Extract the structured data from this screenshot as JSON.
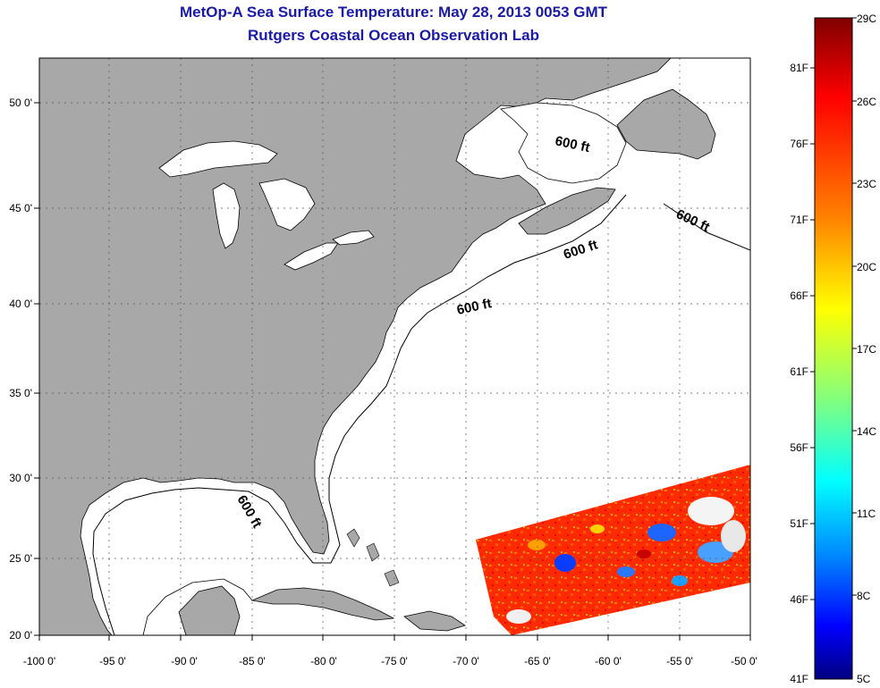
{
  "title": {
    "line1": "MetOp-A Sea Surface Temperature:  May 28, 2013 0053 GMT",
    "line2": "Rutgers Coastal Ocean Observation Lab"
  },
  "map": {
    "extent": {
      "lon": [
        -100,
        -50
      ],
      "lat": [
        20,
        52.5
      ]
    },
    "lon_ticks": [
      "-100 0'",
      "-95 0'",
      "-90 0'",
      "-85 0'",
      "-80 0'",
      "-75 0'",
      "-70 0'",
      "-65 0'",
      "-60 0'",
      "-55 0'",
      "-50 0'"
    ],
    "lat_ticks": [
      "50 0'",
      "45 0'",
      "40 0'",
      "35 0'",
      "30 0'",
      "25 0'",
      "20 0'"
    ],
    "land_color": "#a8a8a8",
    "ocean_color": "#ffffff",
    "contour_labels": [
      "600 ft",
      "600 ft",
      "600 ft",
      "600 ft",
      "600 ft"
    ]
  },
  "colorbar": {
    "celsius": [
      "29C",
      "26C",
      "23C",
      "20C",
      "17C",
      "14C",
      "11C",
      "8C",
      "5C"
    ],
    "fahrenheit": [
      "81F",
      "76F",
      "71F",
      "66F",
      "61F",
      "56F",
      "51F",
      "46F",
      "41F"
    ],
    "colors": [
      "#800000",
      "#ff0000",
      "#ff8000",
      "#ffff00",
      "#80ff80",
      "#00ffff",
      "#0080ff",
      "#0000ff",
      "#000080"
    ]
  }
}
